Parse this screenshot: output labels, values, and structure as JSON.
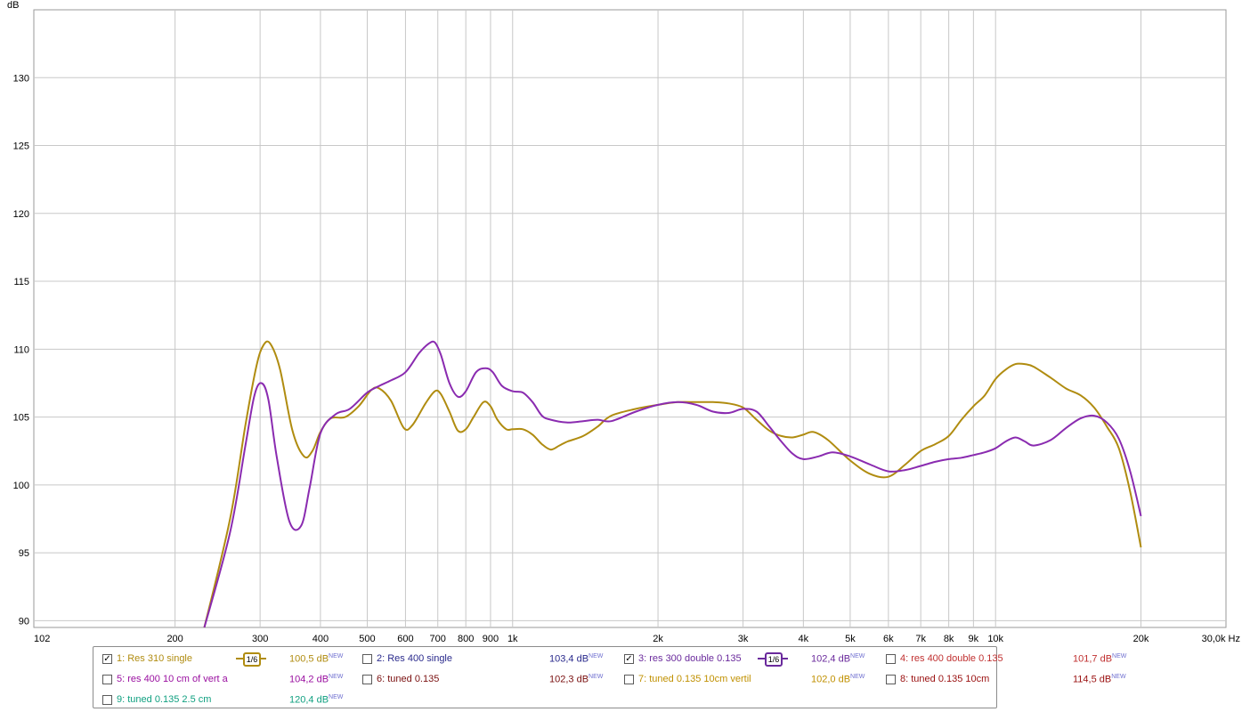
{
  "chart_data": {
    "type": "line",
    "title": "",
    "ylabel": "dB",
    "xlabel": "Hz",
    "x_scale": "log",
    "xlim": [
      102,
      30000
    ],
    "ylim": [
      89.5,
      135
    ],
    "grid": true,
    "y_ticks": [
      90,
      95,
      100,
      105,
      110,
      115,
      120,
      125,
      130
    ],
    "x_ticks": [
      {
        "v": 102,
        "label": "102"
      },
      {
        "v": 200,
        "label": "200"
      },
      {
        "v": 300,
        "label": "300"
      },
      {
        "v": 400,
        "label": "400"
      },
      {
        "v": 500,
        "label": "500"
      },
      {
        "v": 600,
        "label": "600"
      },
      {
        "v": 700,
        "label": "700"
      },
      {
        "v": 800,
        "label": "800"
      },
      {
        "v": 900,
        "label": "900"
      },
      {
        "v": 1000,
        "label": "1k"
      },
      {
        "v": 2000,
        "label": "2k"
      },
      {
        "v": 3000,
        "label": "3k"
      },
      {
        "v": 4000,
        "label": "4k"
      },
      {
        "v": 5000,
        "label": "5k"
      },
      {
        "v": 6000,
        "label": "6k"
      },
      {
        "v": 7000,
        "label": "7k"
      },
      {
        "v": 8000,
        "label": "8k"
      },
      {
        "v": 9000,
        "label": "9k"
      },
      {
        "v": 10000,
        "label": "10k"
      },
      {
        "v": 20000,
        "label": "20k"
      },
      {
        "v": 30000,
        "label": "30,0k Hz"
      }
    ],
    "series": [
      {
        "name": "1: Res 310 single",
        "color": "#b08c10",
        "x": [
          230,
          260,
          280,
          295,
          305,
          315,
          330,
          350,
          370,
          385,
          400,
          420,
          450,
          480,
          510,
          530,
          560,
          595,
          620,
          660,
          690,
          710,
          740,
          770,
          800,
          830,
          870,
          900,
          930,
          970,
          1000,
          1050,
          1100,
          1150,
          1200,
          1250,
          1300,
          1400,
          1500,
          1600,
          1800,
          2000,
          2200,
          2400,
          2600,
          2800,
          3000,
          3200,
          3400,
          3600,
          3800,
          4000,
          4200,
          4500,
          5000,
          5500,
          6000,
          6500,
          7000,
          7500,
          8000,
          8500,
          9000,
          9500,
          10000,
          10500,
          11000,
          11500,
          12000,
          13000,
          14000,
          15000,
          16000,
          17000,
          18000,
          19000,
          20000
        ],
        "y": [
          89.5,
          97.5,
          104.5,
          108.8,
          110.3,
          110.4,
          108.5,
          104,
          102.1,
          102.5,
          103.9,
          104.9,
          105,
          105.8,
          107,
          107.1,
          106.2,
          104.2,
          104.4,
          106,
          106.9,
          106.7,
          105.4,
          104,
          104.1,
          105,
          106.1,
          105.8,
          104.8,
          104.1,
          104.1,
          104.1,
          103.7,
          103,
          102.6,
          102.9,
          103.2,
          103.6,
          104.3,
          105.1,
          105.6,
          105.9,
          106.1,
          106.1,
          106.1,
          106,
          105.7,
          104.8,
          104,
          103.6,
          103.5,
          103.7,
          103.9,
          103.3,
          101.8,
          100.8,
          100.6,
          101.5,
          102.5,
          103,
          103.6,
          104.8,
          105.8,
          106.6,
          107.8,
          108.5,
          108.9,
          108.9,
          108.7,
          107.9,
          107.1,
          106.6,
          105.7,
          104.3,
          102.7,
          99.5,
          95.4
        ]
      },
      {
        "name": "3: res 300 double 0.135",
        "color": "#8a2bb0",
        "x": [
          230,
          260,
          280,
          292,
          302,
          312,
          325,
          345,
          365,
          380,
          400,
          430,
          460,
          500,
          530,
          560,
          600,
          640,
          670,
          690,
          710,
          740,
          770,
          800,
          840,
          880,
          910,
          950,
          1000,
          1050,
          1100,
          1150,
          1200,
          1300,
          1400,
          1500,
          1600,
          1800,
          2000,
          2200,
          2400,
          2600,
          2800,
          3000,
          3200,
          3400,
          3600,
          3800,
          4000,
          4300,
          4600,
          5000,
          5500,
          6000,
          6500,
          7000,
          7500,
          8000,
          8500,
          9000,
          9500,
          10000,
          10500,
          11000,
          11500,
          12000,
          13000,
          14000,
          15000,
          16000,
          17000,
          18000,
          19000,
          20000
        ],
        "y": [
          89.5,
          96.5,
          103,
          106.6,
          107.5,
          106.3,
          102,
          97.3,
          97,
          99.8,
          103.8,
          105.2,
          105.6,
          106.8,
          107.3,
          107.7,
          108.3,
          109.7,
          110.4,
          110.5,
          109.6,
          107.5,
          106.5,
          106.9,
          108.3,
          108.6,
          108.3,
          107.3,
          106.9,
          106.8,
          106.1,
          105.1,
          104.8,
          104.6,
          104.7,
          104.8,
          104.7,
          105.4,
          105.9,
          106.1,
          105.9,
          105.4,
          105.3,
          105.6,
          105.4,
          104.3,
          103.2,
          102.3,
          101.9,
          102.1,
          102.4,
          102.1,
          101.5,
          101.0,
          101.1,
          101.4,
          101.7,
          101.9,
          102.0,
          102.2,
          102.4,
          102.7,
          103.2,
          103.5,
          103.2,
          102.9,
          103.3,
          104.2,
          104.9,
          105.1,
          104.6,
          103.4,
          101.0,
          97.7
        ]
      }
    ]
  },
  "legend": [
    {
      "checked": true,
      "label": "1: Res 310 single",
      "color": "#b08c10",
      "value": "100,5 dB",
      "smoothing": "1/6"
    },
    {
      "checked": false,
      "label": "2: Res 400 single",
      "color": "#2a2a8c",
      "value": "103,4 dB",
      "smoothing": ""
    },
    {
      "checked": true,
      "label": "3: res 300 double 0.135",
      "color": "#6a2a9c",
      "value": "102,4 dB",
      "smoothing": "1/6"
    },
    {
      "checked": false,
      "label": "4: res 400 double 0.135",
      "color": "#c03030",
      "value": "101,7 dB",
      "smoothing": ""
    },
    {
      "checked": false,
      "label": "5: res 400 10 cm of vert a",
      "color": "#9a10a0",
      "value": "104,2 dB",
      "smoothing": ""
    },
    {
      "checked": false,
      "label": "6: tuned 0.135",
      "color": "#7a1010",
      "value": "102,3 dB",
      "smoothing": ""
    },
    {
      "checked": false,
      "label": "7: tuned 0.135 10cm  vertil",
      "color": "#c09000",
      "value": "102,0 dB",
      "smoothing": ""
    },
    {
      "checked": false,
      "label": "8: tuned 0.135 10cm",
      "color": "#9a1010",
      "value": "114,5 dB",
      "smoothing": ""
    },
    {
      "checked": false,
      "label": "9: tuned 0.135 2.5 cm",
      "color": "#10a080",
      "value": "120,4 dB",
      "smoothing": ""
    }
  ],
  "legend_new_tag": "NEW"
}
